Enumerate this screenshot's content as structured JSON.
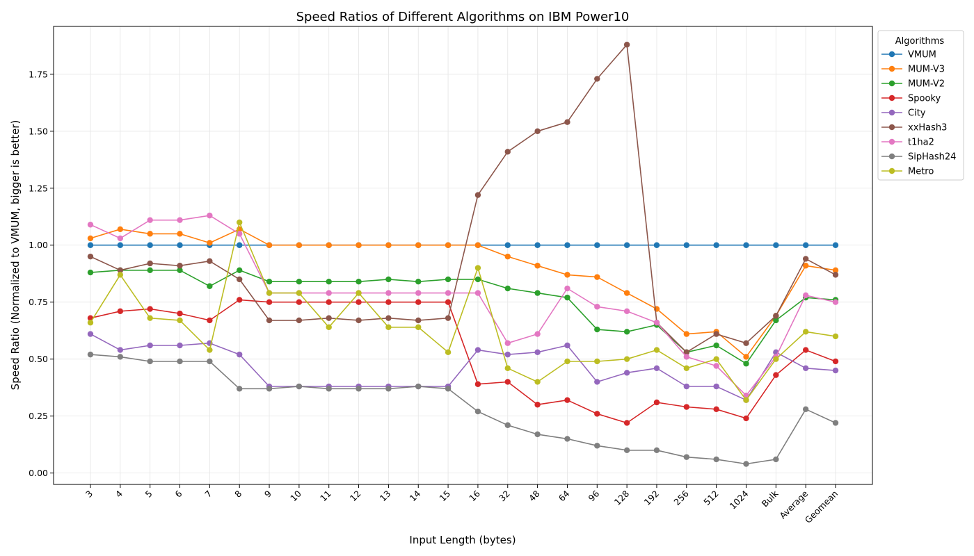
{
  "chart_data": {
    "type": "line",
    "title": "Speed Ratios of Different Algorithms on IBM Power10",
    "xlabel": "Input Length (bytes)",
    "ylabel": "Speed Ratio (Normalized to VMUM, bigger is better)",
    "ylim": [
      -0.05,
      1.96
    ],
    "yticks": [
      0.0,
      0.25,
      0.5,
      0.75,
      1.0,
      1.25,
      1.5,
      1.75
    ],
    "ytick_labels": [
      "0.00",
      "0.25",
      "0.50",
      "0.75",
      "1.00",
      "1.25",
      "1.50",
      "1.75"
    ],
    "grid": true,
    "legend_title": "Algorithms",
    "legend_position": "outside-top-right",
    "categories": [
      "3",
      "4",
      "5",
      "6",
      "7",
      "8",
      "9",
      "10",
      "11",
      "12",
      "13",
      "14",
      "15",
      "16",
      "32",
      "48",
      "64",
      "96",
      "128",
      "192",
      "256",
      "512",
      "1024",
      "Bulk",
      "Average",
      "Geomean"
    ],
    "series": [
      {
        "name": "VMUM",
        "color": "#1f77b4",
        "values": [
          1.0,
          1.0,
          1.0,
          1.0,
          1.0,
          1.0,
          1.0,
          1.0,
          1.0,
          1.0,
          1.0,
          1.0,
          1.0,
          1.0,
          1.0,
          1.0,
          1.0,
          1.0,
          1.0,
          1.0,
          1.0,
          1.0,
          1.0,
          1.0,
          1.0,
          1.0
        ]
      },
      {
        "name": "MUM-V3",
        "color": "#ff7f0e",
        "values": [
          1.03,
          1.07,
          1.05,
          1.05,
          1.01,
          1.07,
          1.0,
          1.0,
          1.0,
          1.0,
          1.0,
          1.0,
          1.0,
          1.0,
          0.95,
          0.91,
          0.87,
          0.86,
          0.79,
          0.72,
          0.61,
          0.62,
          0.51,
          0.69,
          0.91,
          0.89
        ]
      },
      {
        "name": "MUM-V2",
        "color": "#2ca02c",
        "values": [
          0.88,
          0.89,
          0.89,
          0.89,
          0.82,
          0.89,
          0.84,
          0.84,
          0.84,
          0.84,
          0.85,
          0.84,
          0.85,
          0.85,
          0.81,
          0.79,
          0.77,
          0.63,
          0.62,
          0.65,
          0.53,
          0.56,
          0.48,
          0.67,
          0.77,
          0.76
        ]
      },
      {
        "name": "Spooky",
        "color": "#d62728",
        "values": [
          0.68,
          0.71,
          0.72,
          0.7,
          0.67,
          0.76,
          0.75,
          0.75,
          0.75,
          0.75,
          0.75,
          0.75,
          0.75,
          0.39,
          0.4,
          0.3,
          0.32,
          0.26,
          0.22,
          0.31,
          0.29,
          0.28,
          0.24,
          0.43,
          0.54,
          0.49
        ]
      },
      {
        "name": "City",
        "color": "#9467bd",
        "values": [
          0.61,
          0.54,
          0.56,
          0.56,
          0.57,
          0.52,
          0.38,
          0.38,
          0.38,
          0.38,
          0.38,
          0.38,
          0.38,
          0.54,
          0.52,
          0.53,
          0.56,
          0.4,
          0.44,
          0.46,
          0.38,
          0.38,
          0.32,
          0.53,
          0.46,
          0.45
        ]
      },
      {
        "name": "xxHash3",
        "color": "#8c564b",
        "values": [
          0.95,
          0.89,
          0.92,
          0.91,
          0.93,
          0.85,
          0.67,
          0.67,
          0.68,
          0.67,
          0.68,
          0.67,
          0.68,
          1.22,
          1.41,
          1.5,
          1.54,
          1.73,
          1.88,
          0.66,
          0.53,
          0.61,
          0.57,
          0.69,
          0.94,
          0.87
        ]
      },
      {
        "name": "t1ha2",
        "color": "#e377c2",
        "values": [
          1.09,
          1.03,
          1.11,
          1.11,
          1.13,
          1.05,
          0.79,
          0.79,
          0.79,
          0.79,
          0.79,
          0.79,
          0.79,
          0.79,
          0.57,
          0.61,
          0.81,
          0.73,
          0.71,
          0.66,
          0.51,
          0.47,
          0.34,
          0.51,
          0.78,
          0.75
        ]
      },
      {
        "name": "SipHash24",
        "color": "#7f7f7f",
        "values": [
          0.52,
          0.51,
          0.49,
          0.49,
          0.49,
          0.37,
          0.37,
          0.38,
          0.37,
          0.37,
          0.37,
          0.38,
          0.37,
          0.27,
          0.21,
          0.17,
          0.15,
          0.12,
          0.1,
          0.1,
          0.07,
          0.06,
          0.04,
          0.06,
          0.28,
          0.22
        ]
      },
      {
        "name": "Metro",
        "color": "#bcbd22",
        "values": [
          0.66,
          0.87,
          0.68,
          0.67,
          0.54,
          1.1,
          0.79,
          0.79,
          0.64,
          0.79,
          0.64,
          0.64,
          0.53,
          0.9,
          0.46,
          0.4,
          0.49,
          0.49,
          0.5,
          0.54,
          0.46,
          0.5,
          0.32,
          0.5,
          0.62,
          0.6
        ]
      }
    ]
  }
}
